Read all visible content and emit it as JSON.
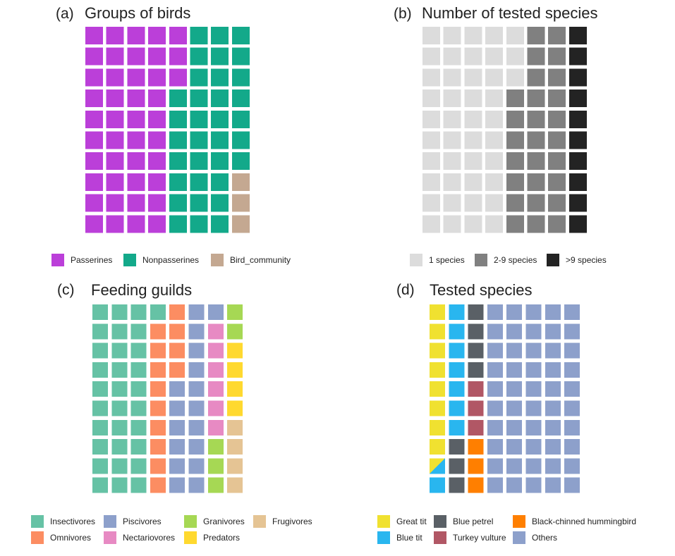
{
  "chart_data": [
    {
      "type": "waffle",
      "panel": "(a)",
      "title": "Groups of birds",
      "rows": 10,
      "cols": 8,
      "categories": [
        "Passerines",
        "Nonpasserines",
        "Bird_community"
      ],
      "values": [
        43,
        34,
        3
      ],
      "colors": [
        "#BB3FD9",
        "#13A98A",
        "#C4A891"
      ]
    },
    {
      "type": "waffle",
      "panel": "(b)",
      "title": "Number of tested species",
      "rows": 10,
      "cols": 8,
      "categories": [
        "1 species",
        "2-9 species",
        ">9 species"
      ],
      "values": [
        43,
        27,
        10
      ],
      "colors": [
        "#DCDCDC",
        "#808080",
        "#232323"
      ]
    },
    {
      "type": "waffle",
      "panel": "(c)",
      "title": "Feeding guilds",
      "rows": 10,
      "cols": 8,
      "categories": [
        "Insectivores",
        "Omnivores",
        "Piscivores",
        "Nectariovores",
        "Granivores",
        "Predators",
        "Frugivores"
      ],
      "values": [
        31,
        13,
        17,
        6,
        5,
        4,
        4
      ],
      "colors": [
        "#66C2A5",
        "#FC8D62",
        "#8DA0CB",
        "#E78AC3",
        "#A6D854",
        "#FFD92F",
        "#E5C494"
      ]
    },
    {
      "type": "waffle",
      "panel": "(d)",
      "title": "Tested species",
      "rows": 10,
      "cols": 8,
      "categories": [
        "Great tit",
        "Blue tit",
        "Blue petrel",
        "Turkey vulture",
        "Black-chinned hummingbird",
        "Others"
      ],
      "values": [
        8.5,
        8.5,
        7,
        3,
        3,
        50
      ],
      "colors": [
        "#F0E130",
        "#29B6EF",
        "#5A6066",
        "#B15765",
        "#FF7F00",
        "#8DA0CB"
      ]
    }
  ]
}
